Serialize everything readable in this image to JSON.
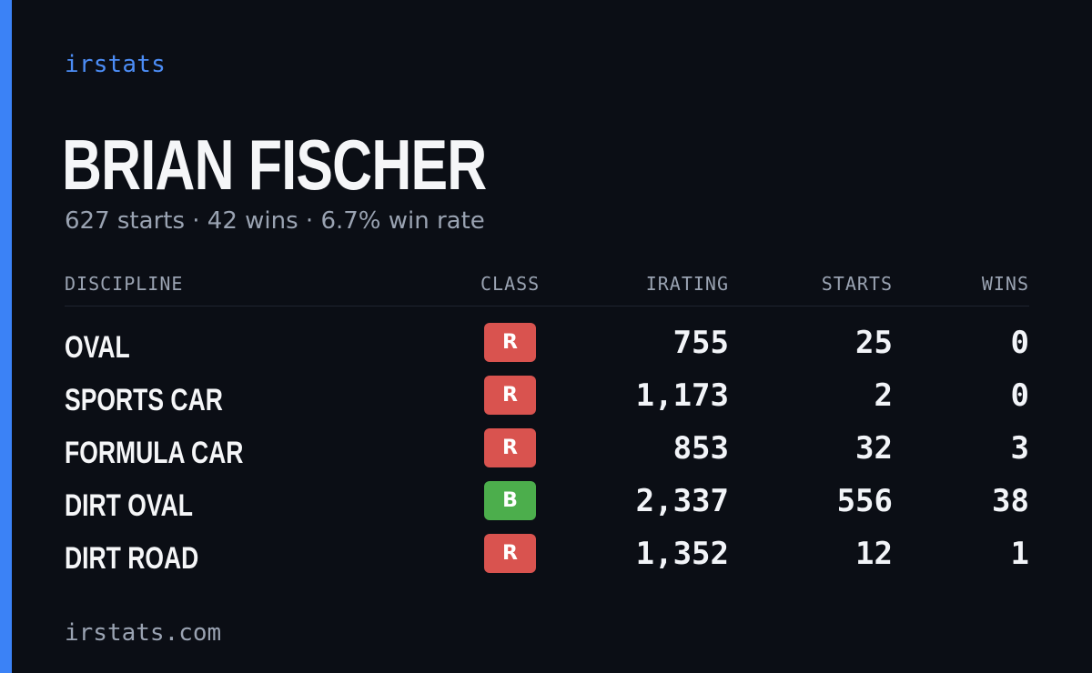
{
  "brand": "irstats",
  "player": {
    "name": "BRIAN FISCHER",
    "summary": "627 starts · 42 wins · 6.7% win rate"
  },
  "colors": {
    "accent": "#3b82f6",
    "class_R": "#d9534f",
    "class_B": "#4cae4c"
  },
  "table": {
    "headers": {
      "discipline": "DISCIPLINE",
      "class": "CLASS",
      "irating": "IRATING",
      "starts": "STARTS",
      "wins": "WINS"
    },
    "rows": [
      {
        "discipline": "OVAL",
        "class": "R",
        "irating": "755",
        "starts": "25",
        "wins": "0"
      },
      {
        "discipline": "SPORTS CAR",
        "class": "R",
        "irating": "1,173",
        "starts": "2",
        "wins": "0"
      },
      {
        "discipline": "FORMULA CAR",
        "class": "R",
        "irating": "853",
        "starts": "32",
        "wins": "3"
      },
      {
        "discipline": "DIRT OVAL",
        "class": "B",
        "irating": "2,337",
        "starts": "556",
        "wins": "38"
      },
      {
        "discipline": "DIRT ROAD",
        "class": "R",
        "irating": "1,352",
        "starts": "12",
        "wins": "1"
      }
    ]
  },
  "footer": "irstats.com"
}
